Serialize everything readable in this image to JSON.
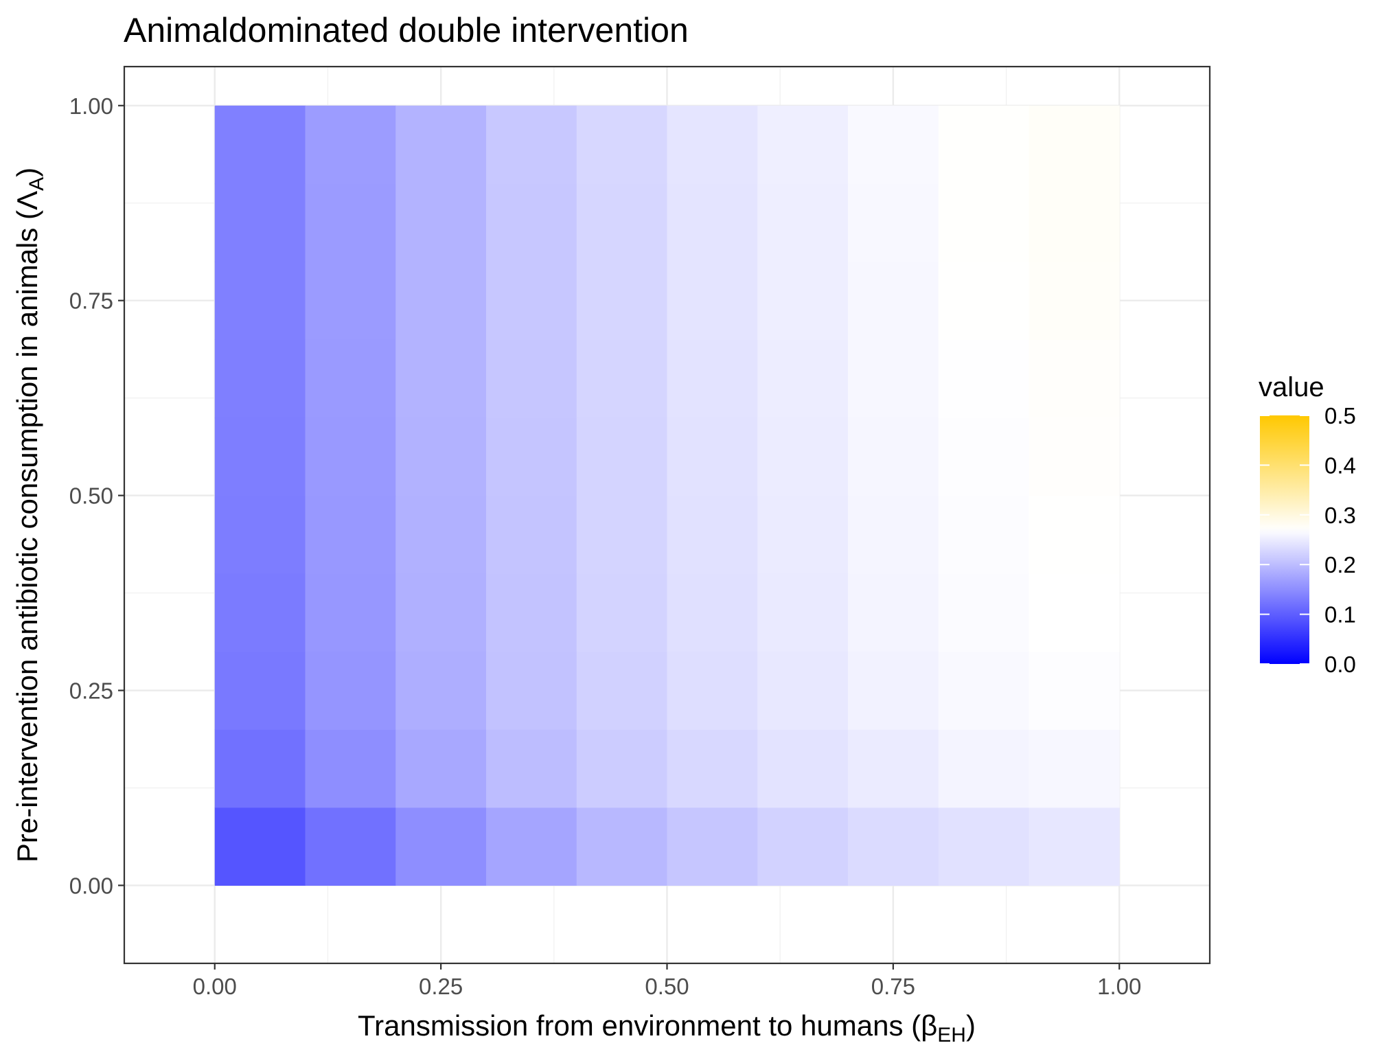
{
  "chart_data": {
    "type": "heatmap",
    "title": "Animaldominated double intervention",
    "xlabel": {
      "main": "Transmission from environment to humans (β",
      "sub": "EH",
      "close": ")"
    },
    "ylabel": {
      "main": "Pre-intervention antibiotic consumption in animals (Λ",
      "sub": "A",
      "close": ")"
    },
    "x": [
      0.05,
      0.15,
      0.25,
      0.35,
      0.45,
      0.55,
      0.65,
      0.75,
      0.85,
      0.95
    ],
    "y": [
      0.05,
      0.15,
      0.25,
      0.35,
      0.45,
      0.55,
      0.65,
      0.75,
      0.85,
      0.95
    ],
    "cell_width": 0.1,
    "cell_height": 0.1,
    "xlim": [
      -0.1,
      1.1
    ],
    "ylim": [
      -0.1,
      1.05
    ],
    "x_ticks": [
      0,
      0.25,
      0.5,
      0.75,
      1.0
    ],
    "x_tick_labels": [
      "0.00",
      "0.25",
      "0.50",
      "0.75",
      "1.00"
    ],
    "y_ticks": [
      0,
      0.25,
      0.5,
      0.75,
      1.0
    ],
    "y_tick_labels": [
      "0.00",
      "0.25",
      "0.50",
      "0.75",
      "1.00"
    ],
    "values": [
      [
        0.09,
        0.12,
        0.15,
        0.175,
        0.195,
        0.21,
        0.222,
        0.232,
        0.238,
        0.245
      ],
      [
        0.12,
        0.15,
        0.178,
        0.2,
        0.216,
        0.229,
        0.24,
        0.249,
        0.258,
        0.262
      ],
      [
        0.128,
        0.158,
        0.184,
        0.205,
        0.221,
        0.235,
        0.246,
        0.256,
        0.264,
        0.268
      ],
      [
        0.13,
        0.16,
        0.186,
        0.207,
        0.223,
        0.237,
        0.248,
        0.258,
        0.266,
        0.27
      ],
      [
        0.132,
        0.161,
        0.187,
        0.208,
        0.224,
        0.238,
        0.249,
        0.259,
        0.267,
        0.271
      ],
      [
        0.133,
        0.162,
        0.188,
        0.209,
        0.225,
        0.239,
        0.25,
        0.26,
        0.268,
        0.273
      ],
      [
        0.134,
        0.163,
        0.189,
        0.21,
        0.226,
        0.24,
        0.251,
        0.261,
        0.269,
        0.274
      ],
      [
        0.135,
        0.164,
        0.189,
        0.211,
        0.227,
        0.241,
        0.252,
        0.262,
        0.271,
        0.275
      ],
      [
        0.136,
        0.164,
        0.19,
        0.211,
        0.227,
        0.241,
        0.252,
        0.263,
        0.272,
        0.276
      ],
      [
        0.136,
        0.165,
        0.19,
        0.212,
        0.228,
        0.242,
        0.253,
        0.264,
        0.272,
        0.276
      ]
    ],
    "legend": {
      "title": "value",
      "position": "right",
      "limits": [
        0,
        0.5
      ],
      "ticks": [
        0.0,
        0.1,
        0.2,
        0.3,
        0.4,
        0.5
      ],
      "tick_labels": [
        "0.0",
        "0.1",
        "0.2",
        "0.3",
        "0.4",
        "0.5"
      ],
      "low_color": "#0000ff",
      "mid_color": "#ffffff",
      "high_color": "#ffc800",
      "midpoint": 0.27
    },
    "grid": true,
    "theme": "bw"
  }
}
